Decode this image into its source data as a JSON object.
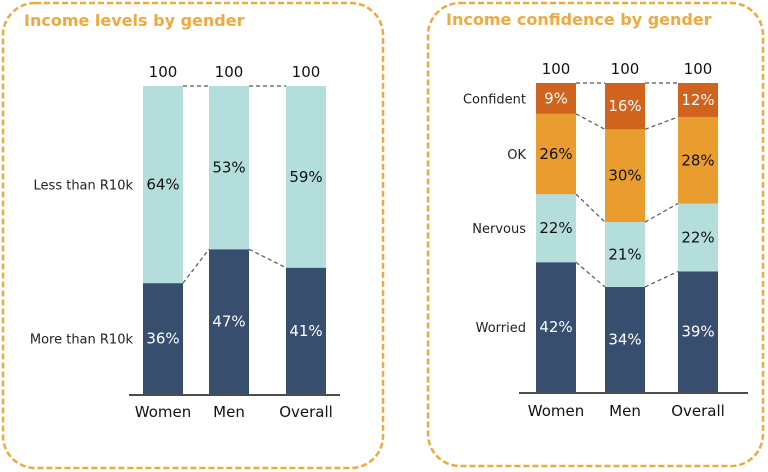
{
  "colors": {
    "accent": "#EFA93F",
    "dark_navy": "#374E6E",
    "light_teal": "#B3DEDC",
    "orange_mid": "#E89D2E",
    "orange_dark": "#D0631E"
  },
  "chart_data": [
    {
      "type": "bar",
      "stacked": true,
      "title": "Income levels by gender",
      "categories": [
        "Women",
        "Men",
        "Overall"
      ],
      "totals": [
        "100",
        "100",
        "100"
      ],
      "series": [
        {
          "name": "More than R10k",
          "values": [
            36,
            47,
            41
          ],
          "labels": [
            "36%",
            "47%",
            "41%"
          ],
          "color": "#374E6E",
          "text_color": "#FFFFFF"
        },
        {
          "name": "Less than R10k",
          "values": [
            64,
            53,
            59
          ],
          "labels": [
            "64%",
            "53%",
            "59%"
          ],
          "color": "#B3DEDC",
          "text_color": "#111111"
        }
      ],
      "ylim": [
        0,
        100
      ],
      "legend": "left"
    },
    {
      "type": "bar",
      "stacked": true,
      "title": "Income confidence by gender",
      "categories": [
        "Women",
        "Men",
        "Overall"
      ],
      "totals": [
        "100",
        "100",
        "100"
      ],
      "series": [
        {
          "name": "Worried",
          "values": [
            42,
            34,
            39
          ],
          "labels": [
            "42%",
            "34%",
            "39%"
          ],
          "color": "#374E6E",
          "text_color": "#FFFFFF"
        },
        {
          "name": "Nervous",
          "values": [
            22,
            21,
            22
          ],
          "labels": [
            "22%",
            "21%",
            "22%"
          ],
          "color": "#B3DEDC",
          "text_color": "#111111"
        },
        {
          "name": "OK",
          "values": [
            26,
            30,
            28
          ],
          "labels": [
            "26%",
            "30%",
            "28%"
          ],
          "color": "#E89D2E",
          "text_color": "#111111"
        },
        {
          "name": "Confident",
          "values": [
            9,
            16,
            12
          ],
          "labels": [
            "9%",
            "16%",
            "12%"
          ],
          "color": "#D0631E",
          "text_color": "#FFFFFF"
        }
      ],
      "ylim": [
        0,
        100
      ],
      "legend": "left"
    }
  ]
}
